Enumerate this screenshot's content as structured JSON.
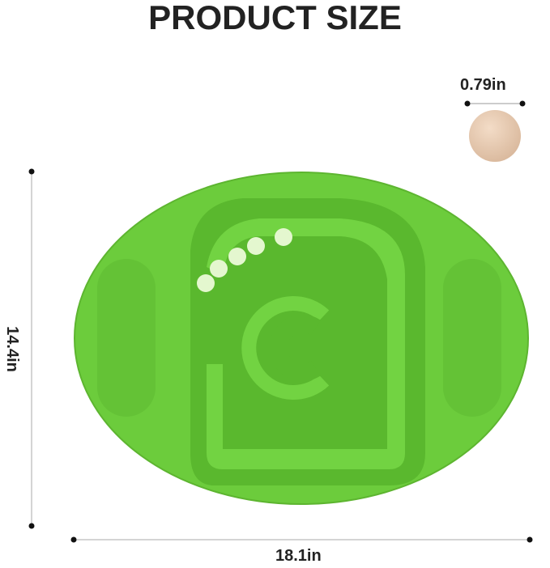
{
  "title": "PRODUCT SIZE",
  "dimensions": {
    "ball_diameter": "0.79in",
    "height": "14.4in",
    "width": "18.1in"
  },
  "colors": {
    "board": "#6ccc3c",
    "maze_channel": "#5ab82e",
    "ball_marble": "#e4f7cf",
    "wooden_ball": "#e8cdb5"
  }
}
